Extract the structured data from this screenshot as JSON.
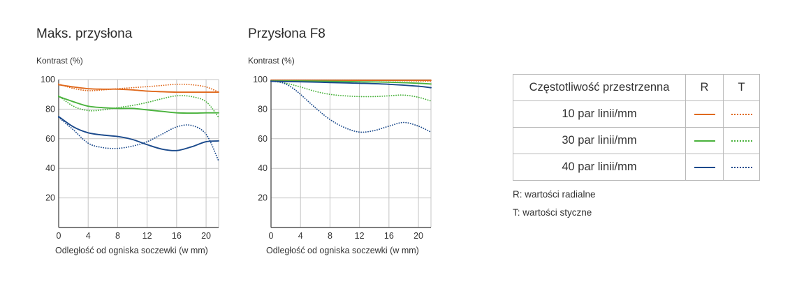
{
  "colors": {
    "10": "#e06a1e",
    "30": "#49b23c",
    "40": "#1b4a8c",
    "grid": "#c4c4c4"
  },
  "charts": [
    {
      "title": "Maks. przysłona",
      "ylabel": "Kontrast (%)",
      "xlabel": "Odległość od ogniska soczewki (w mm)"
    },
    {
      "title": "Przysłona F8",
      "ylabel": "Kontrast (%)",
      "xlabel": "Odległość od ogniska soczewki (w mm)"
    }
  ],
  "legend": {
    "header": [
      "Częstotliwość przestrzenna",
      "R",
      "T"
    ],
    "rows": [
      {
        "label": "10 par linii/mm",
        "key": "10"
      },
      {
        "label": "30 par linii/mm",
        "key": "30"
      },
      {
        "label": "40 par linii/mm",
        "key": "40"
      }
    ]
  },
  "notes": [
    "R: wartości radialne",
    "T: wartości styczne"
  ],
  "chart_data": [
    {
      "type": "line",
      "title": "Maks. przysłona",
      "xlabel": "Odległość od ogniska soczewki (w mm)",
      "ylabel": "Kontrast (%)",
      "xlim": [
        0,
        21.7
      ],
      "ylim": [
        0,
        100
      ],
      "xticks": [
        0,
        4,
        8,
        12,
        16,
        20
      ],
      "yticks": [
        20,
        40,
        60,
        80,
        100
      ],
      "grid": true,
      "series": [
        {
          "name": "10 par linii/mm",
          "kind": "R",
          "color": "#e06a1e",
          "dash": false,
          "x": [
            0,
            2,
            4,
            6,
            8,
            10,
            12,
            14,
            16,
            18,
            20,
            21.7
          ],
          "y": [
            96.5,
            95,
            93.8,
            93.5,
            93.5,
            93,
            92.2,
            91.8,
            91.5,
            91.5,
            91.5,
            91.5
          ]
        },
        {
          "name": "10 par linii/mm",
          "kind": "T",
          "color": "#e06a1e",
          "dash": true,
          "x": [
            0,
            2,
            4,
            6,
            8,
            10,
            12,
            14,
            16,
            18,
            20,
            21.7
          ],
          "y": [
            97,
            94,
            92.5,
            93,
            93.8,
            94.5,
            95.2,
            96,
            96.8,
            96.5,
            95,
            91.5
          ]
        },
        {
          "name": "30 par linii/mm",
          "kind": "R",
          "color": "#49b23c",
          "dash": false,
          "x": [
            0,
            2,
            4,
            6,
            8,
            10,
            12,
            14,
            16,
            18,
            20,
            21.7
          ],
          "y": [
            88.5,
            85,
            82,
            81,
            80.5,
            80.5,
            79.5,
            78.5,
            77.5,
            77.3,
            77.5,
            77.5
          ]
        },
        {
          "name": "30 par linii/mm",
          "kind": "T",
          "color": "#49b23c",
          "dash": true,
          "x": [
            0,
            2,
            4,
            6,
            8,
            10,
            12,
            14,
            16,
            18,
            20,
            21.7
          ],
          "y": [
            89,
            82,
            79,
            79.5,
            81,
            82.5,
            84.5,
            87,
            89,
            88.5,
            85,
            74.5
          ]
        },
        {
          "name": "40 par linii/mm",
          "kind": "R",
          "color": "#1b4a8c",
          "dash": false,
          "x": [
            0,
            2,
            4,
            6,
            8,
            10,
            12,
            14,
            16,
            18,
            20,
            21.7
          ],
          "y": [
            75,
            68,
            64,
            62.5,
            61.5,
            59.5,
            56,
            53,
            52,
            54.5,
            58,
            58.5
          ]
        },
        {
          "name": "40 par linii/mm",
          "kind": "T",
          "color": "#1b4a8c",
          "dash": true,
          "x": [
            0,
            2,
            4,
            6,
            8,
            10,
            12,
            14,
            16,
            18,
            20,
            21.7
          ],
          "y": [
            74.5,
            66,
            57,
            54,
            53.5,
            55,
            58,
            63,
            68,
            69,
            63,
            45
          ]
        }
      ]
    },
    {
      "type": "line",
      "title": "Przysłona F8",
      "xlabel": "Odległość od ogniska soczewki (w mm)",
      "ylabel": "Kontrast (%)",
      "xlim": [
        0,
        21.7
      ],
      "ylim": [
        0,
        100
      ],
      "xticks": [
        0,
        4,
        8,
        12,
        16,
        20
      ],
      "yticks": [
        20,
        40,
        60,
        80,
        100
      ],
      "grid": true,
      "series": [
        {
          "name": "10 par linii/mm",
          "kind": "R",
          "color": "#e06a1e",
          "dash": false,
          "x": [
            0,
            4,
            8,
            12,
            16,
            20,
            21.7
          ],
          "y": [
            99.5,
            99.5,
            99.5,
            99.5,
            99.5,
            99.5,
            99.5
          ]
        },
        {
          "name": "10 par linii/mm",
          "kind": "T",
          "color": "#e06a1e",
          "dash": true,
          "x": [
            0,
            4,
            8,
            12,
            16,
            20,
            21.7
          ],
          "y": [
            99.5,
            99.5,
            99.5,
            99.5,
            99.3,
            99,
            98.8
          ]
        },
        {
          "name": "30 par linii/mm",
          "kind": "R",
          "color": "#49b23c",
          "dash": false,
          "x": [
            0,
            4,
            8,
            12,
            16,
            20,
            21.7
          ],
          "y": [
            99,
            99,
            98.8,
            98.5,
            98.2,
            97.5,
            97
          ]
        },
        {
          "name": "30 par linii/mm",
          "kind": "T",
          "color": "#49b23c",
          "dash": true,
          "x": [
            0,
            2,
            4,
            6,
            8,
            10,
            12,
            14,
            16,
            18,
            20,
            21.7
          ],
          "y": [
            99,
            97.5,
            95,
            92,
            90,
            89,
            88.5,
            88.5,
            89,
            89.5,
            88,
            85.5
          ]
        },
        {
          "name": "40 par linii/mm",
          "kind": "R",
          "color": "#1b4a8c",
          "dash": false,
          "x": [
            0,
            4,
            8,
            12,
            16,
            20,
            21.7
          ],
          "y": [
            98.8,
            98.5,
            98,
            97.5,
            96.8,
            95.5,
            94.5
          ]
        },
        {
          "name": "40 par linii/mm",
          "kind": "T",
          "color": "#1b4a8c",
          "dash": true,
          "x": [
            0,
            1,
            2,
            3,
            4,
            6,
            8,
            10,
            12,
            14,
            16,
            18,
            20,
            21.7
          ],
          "y": [
            99,
            98.5,
            97,
            94,
            90,
            81,
            73,
            67.5,
            64.5,
            65.5,
            68.5,
            71,
            68.5,
            64.5
          ]
        }
      ]
    }
  ]
}
